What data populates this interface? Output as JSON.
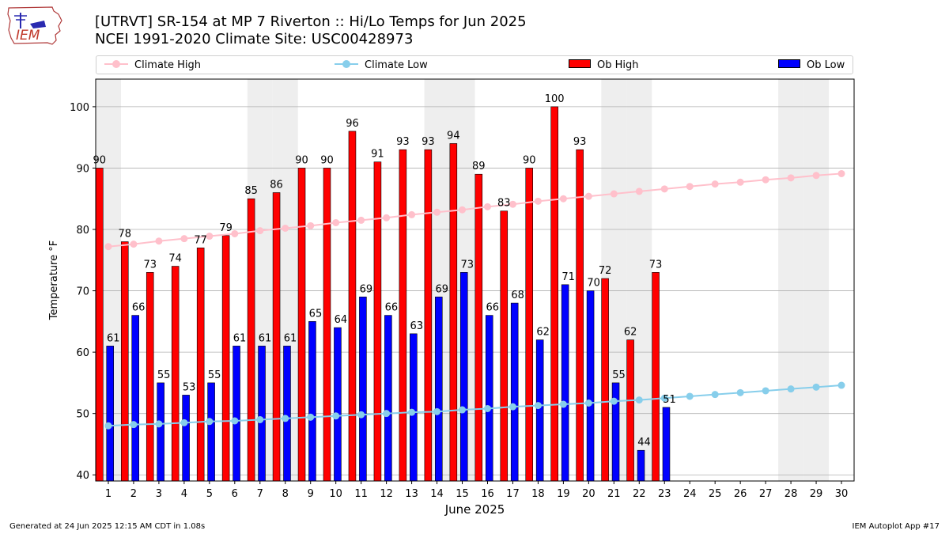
{
  "header": {
    "title_line1": "[UTRVT] SR-154 at MP 7 Riverton  :: Hi/Lo Temps for Jun 2025",
    "title_line2": "NCEI 1991-2020 Climate Site: USC00428973",
    "logo_text": "IEM"
  },
  "footer": {
    "generated": "Generated at 24 Jun 2025 12:15 AM CDT in 1.08s",
    "app": "IEM Autoplot App #17"
  },
  "colors": {
    "ob_high": "#ff0000",
    "ob_low": "#0000ff",
    "climate_high": "#ffc0cb",
    "climate_low": "#87ceeb",
    "weekend_shade": "#eeeeee",
    "grid": "#b0b0b0"
  },
  "chart_data": {
    "type": "bar",
    "xlabel": "June 2025",
    "ylabel": "Temperature °F",
    "ylim": [
      39,
      104.5
    ],
    "yticks": [
      40,
      50,
      60,
      70,
      80,
      90,
      100
    ],
    "grid": "horizontal",
    "legend_position": "top",
    "categories": [
      1,
      2,
      3,
      4,
      5,
      6,
      7,
      8,
      9,
      10,
      11,
      12,
      13,
      14,
      15,
      16,
      17,
      18,
      19,
      20,
      21,
      22,
      23,
      24,
      25,
      26,
      27,
      28,
      29,
      30
    ],
    "weekend_days": [
      1,
      7,
      8,
      14,
      15,
      21,
      22,
      28,
      29
    ],
    "series": [
      {
        "name": "Climate High",
        "kind": "line",
        "values": [
          77.2,
          77.6,
          78.1,
          78.5,
          78.9,
          79.3,
          79.8,
          80.2,
          80.6,
          81.1,
          81.5,
          81.9,
          82.4,
          82.8,
          83.2,
          83.7,
          84.1,
          84.6,
          85.0,
          85.4,
          85.8,
          86.2,
          86.6,
          87.0,
          87.4,
          87.7,
          88.1,
          88.4,
          88.8,
          89.1
        ]
      },
      {
        "name": "Climate Low",
        "kind": "line",
        "values": [
          48.0,
          48.2,
          48.3,
          48.5,
          48.7,
          48.8,
          49.0,
          49.2,
          49.4,
          49.6,
          49.8,
          50.0,
          50.2,
          50.3,
          50.6,
          50.8,
          51.1,
          51.3,
          51.5,
          51.7,
          52.0,
          52.2,
          52.5,
          52.8,
          53.1,
          53.4,
          53.7,
          54.0,
          54.3,
          54.6
        ]
      },
      {
        "name": "Ob High",
        "kind": "bar",
        "values": [
          90,
          78,
          73,
          74,
          77,
          79,
          85,
          86,
          90,
          90,
          96,
          91,
          93,
          93,
          94,
          89,
          83,
          90,
          100,
          93,
          72,
          62,
          73,
          null,
          null,
          null,
          null,
          null,
          null,
          null
        ]
      },
      {
        "name": "Ob Low",
        "kind": "bar",
        "values": [
          61,
          66,
          55,
          53,
          55,
          61,
          61,
          61,
          65,
          64,
          69,
          66,
          63,
          69,
          73,
          66,
          68,
          62,
          71,
          70,
          55,
          44,
          51,
          null,
          null,
          null,
          null,
          null,
          null,
          null
        ]
      }
    ]
  }
}
